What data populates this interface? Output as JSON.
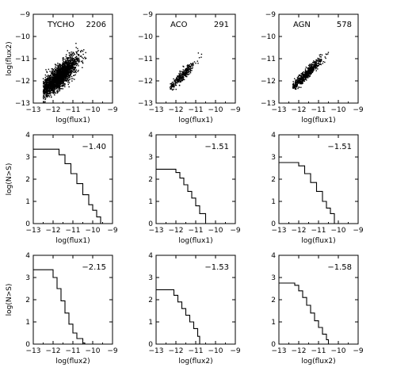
{
  "chart_data": [
    {
      "type": "scatter",
      "name": "TYCHO flux-flux",
      "label": "TYCHO",
      "count": "2206",
      "xlabel": "log(flux1)",
      "ylabel": "log(flux2)",
      "xlim": [
        -13,
        -9
      ],
      "ylim": [
        -13,
        -9
      ],
      "xticks": [
        -13,
        -12,
        -11,
        -10,
        -9
      ],
      "yticks": [
        -13,
        -12,
        -11,
        -10,
        -9
      ],
      "cloud": {
        "n": 2206,
        "x_center": -11.7,
        "x_spread": 0.45,
        "slope": 0.75,
        "y_scatter": 0.25,
        "x_range": [
          -12.5,
          -10.1
        ]
      }
    },
    {
      "type": "scatter",
      "name": "ACO flux-flux",
      "label": "ACO",
      "count": "291",
      "xlabel": "log(flux1)",
      "ylabel": "",
      "xlim": [
        -13,
        -9
      ],
      "ylim": [
        -13,
        -9
      ],
      "xticks": [
        -13,
        -12,
        -11,
        -10,
        -9
      ],
      "yticks": [
        -13,
        -12,
        -11,
        -10,
        -9
      ],
      "cloud": {
        "n": 291,
        "x_center": -11.7,
        "x_spread": 0.35,
        "slope": 0.85,
        "y_scatter": 0.12,
        "x_range": [
          -12.3,
          -10.7
        ]
      }
    },
    {
      "type": "scatter",
      "name": "AGN flux-flux",
      "label": "AGN",
      "count": "578",
      "xlabel": "log(flux1)",
      "ylabel": "",
      "xlim": [
        -13,
        -9
      ],
      "ylim": [
        -13,
        -9
      ],
      "xticks": [
        -13,
        -12,
        -11,
        -10,
        -9
      ],
      "yticks": [
        -13,
        -12,
        -11,
        -10,
        -9
      ],
      "cloud": {
        "n": 578,
        "x_center": -11.6,
        "x_spread": 0.4,
        "slope": 0.85,
        "y_scatter": 0.12,
        "x_range": [
          -12.3,
          -9.6
        ]
      }
    },
    {
      "type": "line",
      "name": "TYCHO logN-logS flux1",
      "slope_label": "-1.40",
      "xlabel": "log(flux1)",
      "ylabel": "log(N>S)",
      "xlim": [
        -13,
        -9
      ],
      "ylim": [
        0,
        4
      ],
      "xticks": [
        -13,
        -12,
        -11,
        -10,
        -9
      ],
      "yticks": [
        0,
        1,
        2,
        3,
        4
      ],
      "x": [
        -13,
        -12.0,
        -11.7,
        -11.4,
        -11.1,
        -10.8,
        -10.5,
        -10.2,
        -10.0,
        -9.8,
        -9.6
      ],
      "y": [
        3.35,
        3.35,
        3.1,
        2.7,
        2.25,
        1.8,
        1.3,
        0.85,
        0.6,
        0.3,
        0.0
      ]
    },
    {
      "type": "line",
      "name": "ACO logN-logS flux1",
      "slope_label": "-1.51",
      "xlabel": "log(flux1)",
      "ylabel": "",
      "xlim": [
        -13,
        -9
      ],
      "ylim": [
        0,
        4
      ],
      "xticks": [
        -13,
        -12,
        -11,
        -10,
        -9
      ],
      "yticks": [
        0,
        1,
        2,
        3,
        4
      ],
      "x": [
        -13,
        -12.2,
        -12.0,
        -11.8,
        -11.6,
        -11.4,
        -11.2,
        -11.0,
        -10.8,
        -10.5,
        -10.5
      ],
      "y": [
        2.45,
        2.45,
        2.3,
        2.05,
        1.75,
        1.45,
        1.15,
        0.8,
        0.45,
        0.15,
        0.0
      ]
    },
    {
      "type": "line",
      "name": "AGN logN-logS flux1",
      "slope_label": "-1.51",
      "xlabel": "log(flux1)",
      "ylabel": "",
      "xlim": [
        -13,
        -9
      ],
      "ylim": [
        0,
        4
      ],
      "xticks": [
        -13,
        -12,
        -11,
        -10,
        -9
      ],
      "yticks": [
        0,
        1,
        2,
        3,
        4
      ],
      "x": [
        -13,
        -12.2,
        -12.0,
        -11.7,
        -11.4,
        -11.1,
        -10.8,
        -10.6,
        -10.4,
        -10.2,
        -10.2
      ],
      "y": [
        2.75,
        2.75,
        2.6,
        2.25,
        1.85,
        1.45,
        1.0,
        0.7,
        0.45,
        0.15,
        0.0
      ]
    },
    {
      "type": "line",
      "name": "TYCHO logN-logS flux2",
      "slope_label": "-2.15",
      "xlabel": "log(flux2)",
      "ylabel": "log(N>S)",
      "xlim": [
        -13,
        -9
      ],
      "ylim": [
        0,
        4
      ],
      "xticks": [
        -13,
        -12,
        -11,
        -10,
        -9
      ],
      "yticks": [
        0,
        1,
        2,
        3,
        4
      ],
      "x": [
        -13,
        -12.2,
        -12.0,
        -11.8,
        -11.6,
        -11.4,
        -11.2,
        -11.0,
        -10.8,
        -10.5,
        -10.4
      ],
      "y": [
        3.35,
        3.35,
        3.0,
        2.5,
        1.95,
        1.4,
        0.9,
        0.5,
        0.25,
        0.05,
        0.0
      ]
    },
    {
      "type": "line",
      "name": "ACO logN-logS flux2",
      "slope_label": "-1.53",
      "xlabel": "log(flux2)",
      "ylabel": "",
      "xlim": [
        -13,
        -9
      ],
      "ylim": [
        0,
        4
      ],
      "xticks": [
        -13,
        -12,
        -11,
        -10,
        -9
      ],
      "yticks": [
        0,
        1,
        2,
        3,
        4
      ],
      "x": [
        -13,
        -12.3,
        -12.1,
        -11.9,
        -11.7,
        -11.5,
        -11.3,
        -11.1,
        -10.9,
        -10.8,
        -10.8
      ],
      "y": [
        2.45,
        2.45,
        2.2,
        1.9,
        1.6,
        1.3,
        1.0,
        0.7,
        0.35,
        0.15,
        0.0
      ]
    },
    {
      "type": "line",
      "name": "AGN logN-logS flux2",
      "slope_label": "-1.58",
      "xlabel": "log(flux2)",
      "ylabel": "",
      "xlim": [
        -13,
        -9
      ],
      "ylim": [
        0,
        4
      ],
      "xticks": [
        -13,
        -12,
        -11,
        -10,
        -9
      ],
      "yticks": [
        0,
        1,
        2,
        3,
        4
      ],
      "x": [
        -13,
        -12.4,
        -12.2,
        -12.0,
        -11.8,
        -11.6,
        -11.4,
        -11.2,
        -11.0,
        -10.8,
        -10.6,
        -10.5,
        -10.5
      ],
      "y": [
        2.75,
        2.75,
        2.65,
        2.4,
        2.1,
        1.75,
        1.4,
        1.05,
        0.75,
        0.45,
        0.2,
        0.1,
        0.0
      ]
    }
  ]
}
